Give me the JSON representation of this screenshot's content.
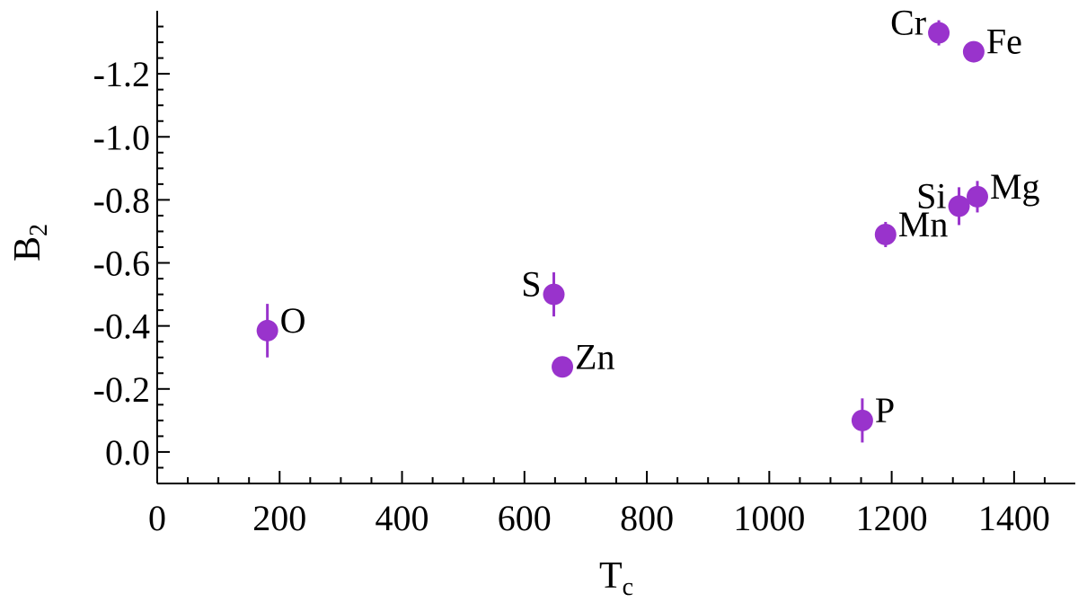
{
  "chart_data": {
    "type": "scatter",
    "title": "",
    "xlabel": "T",
    "xlabel_sub": "c",
    "ylabel": "B",
    "ylabel_sub": "2",
    "xlim": [
      0,
      1500
    ],
    "ylim": [
      0.1,
      -1.4
    ],
    "y_inverted": true,
    "grid": false,
    "xticks": [
      0,
      200,
      400,
      600,
      800,
      1000,
      1200,
      1400
    ],
    "xtick_labels": [
      "0",
      "200",
      "400",
      "600",
      "800",
      "1000",
      "1200",
      "1400"
    ],
    "yticks": [
      0.0,
      -0.2,
      -0.4,
      -0.6,
      -0.8,
      -1.0,
      -1.2
    ],
    "ytick_labels": [
      "0.0",
      "-0.2",
      "-0.4",
      "-0.6",
      "-0.8",
      "-1.0",
      "-1.2"
    ],
    "marker_color": "#9933cc",
    "points": [
      {
        "label": "O",
        "x": 180,
        "y": -0.385,
        "err": 0.085,
        "label_side": "right"
      },
      {
        "label": "S",
        "x": 648,
        "y": -0.5,
        "err": 0.07,
        "label_side": "left"
      },
      {
        "label": "Zn",
        "x": 662,
        "y": -0.27,
        "err": 0.02,
        "label_side": "right"
      },
      {
        "label": "P",
        "x": 1152,
        "y": -0.1,
        "err": 0.07,
        "label_side": "right"
      },
      {
        "label": "Mn",
        "x": 1190,
        "y": -0.69,
        "err": 0.04,
        "label_side": "right"
      },
      {
        "label": "Si",
        "x": 1310,
        "y": -0.78,
        "err": 0.06,
        "label_side": "left"
      },
      {
        "label": "Mg",
        "x": 1340,
        "y": -0.81,
        "err": 0.05,
        "label_side": "right"
      },
      {
        "label": "Cr",
        "x": 1277,
        "y": -1.33,
        "err": 0.04,
        "label_side": "left"
      },
      {
        "label": "Fe",
        "x": 1334,
        "y": -1.27,
        "err": 0.02,
        "label_side": "right"
      }
    ]
  }
}
